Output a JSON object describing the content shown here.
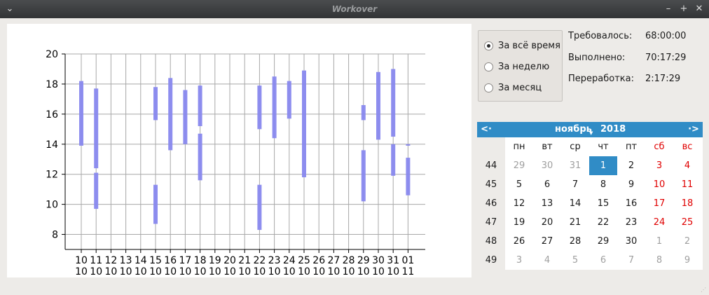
{
  "window": {
    "title": "Workover",
    "menu_glyph": "⌄",
    "minimize_glyph": "–",
    "maximize_glyph": "+",
    "close_glyph": "✕"
  },
  "chart_data": {
    "type": "bar",
    "title": "",
    "xlabel": "",
    "ylabel": "",
    "ylim": [
      7,
      20
    ],
    "yticks": [
      8,
      10,
      12,
      14,
      16,
      18,
      20
    ],
    "categories": [
      {
        "day": "10",
        "month": "10"
      },
      {
        "day": "11",
        "month": "10"
      },
      {
        "day": "12",
        "month": "10"
      },
      {
        "day": "13",
        "month": "10"
      },
      {
        "day": "14",
        "month": "10"
      },
      {
        "day": "15",
        "month": "10"
      },
      {
        "day": "16",
        "month": "10"
      },
      {
        "day": "17",
        "month": "10"
      },
      {
        "day": "18",
        "month": "10"
      },
      {
        "day": "19",
        "month": "10"
      },
      {
        "day": "20",
        "month": "10"
      },
      {
        "day": "21",
        "month": "10"
      },
      {
        "day": "22",
        "month": "10"
      },
      {
        "day": "23",
        "month": "10"
      },
      {
        "day": "24",
        "month": "10"
      },
      {
        "day": "25",
        "month": "10"
      },
      {
        "day": "26",
        "month": "10"
      },
      {
        "day": "27",
        "month": "10"
      },
      {
        "day": "28",
        "month": "10"
      },
      {
        "day": "29",
        "month": "10"
      },
      {
        "day": "30",
        "month": "10"
      },
      {
        "day": "31",
        "month": "10"
      },
      {
        "day": "01",
        "month": "11"
      }
    ],
    "grid": true,
    "bar_color": "#8888ee",
    "intervals": [
      {
        "cat": 0,
        "start": 13.9,
        "end": 18.2
      },
      {
        "cat": 1,
        "start": 12.4,
        "end": 17.7
      },
      {
        "cat": 1,
        "start": 9.7,
        "end": 12.1
      },
      {
        "cat": 5,
        "start": 15.6,
        "end": 17.8
      },
      {
        "cat": 5,
        "start": 8.7,
        "end": 11.3
      },
      {
        "cat": 6,
        "start": 13.6,
        "end": 18.4
      },
      {
        "cat": 7,
        "start": 14.0,
        "end": 17.6
      },
      {
        "cat": 8,
        "start": 15.2,
        "end": 17.9
      },
      {
        "cat": 8,
        "start": 11.6,
        "end": 14.7
      },
      {
        "cat": 12,
        "start": 15.0,
        "end": 17.9
      },
      {
        "cat": 12,
        "start": 8.3,
        "end": 11.3
      },
      {
        "cat": 13,
        "start": 14.4,
        "end": 18.5
      },
      {
        "cat": 14,
        "start": 15.7,
        "end": 18.2
      },
      {
        "cat": 15,
        "start": 11.8,
        "end": 18.9
      },
      {
        "cat": 19,
        "start": 15.6,
        "end": 16.6
      },
      {
        "cat": 19,
        "start": 10.2,
        "end": 13.6
      },
      {
        "cat": 20,
        "start": 14.3,
        "end": 18.8
      },
      {
        "cat": 21,
        "start": 14.5,
        "end": 19.0
      },
      {
        "cat": 21,
        "start": 11.9,
        "end": 14.0
      },
      {
        "cat": 22,
        "start": 13.9,
        "end": 14.0
      },
      {
        "cat": 22,
        "start": 10.6,
        "end": 13.1
      }
    ]
  },
  "period": {
    "options": [
      {
        "label": "За всё время",
        "checked": true
      },
      {
        "label": "За неделю",
        "checked": false
      },
      {
        "label": "За месяц",
        "checked": false
      }
    ]
  },
  "stats": {
    "required_label": "Требовалось:",
    "required_value": "68:00:00",
    "done_label": "Выполнено:",
    "done_value": "70:17:29",
    "overtime_label": "Переработка:",
    "overtime_value": "2:17:29"
  },
  "calendar": {
    "month": "ноябрь",
    "year": "2018",
    "weekday_headers": [
      "пн",
      "вт",
      "ср",
      "чт",
      "пт",
      "сб",
      "вс"
    ],
    "selected_day": "1",
    "weeks": [
      {
        "num": "44",
        "days": [
          {
            "d": "29",
            "other": true
          },
          {
            "d": "30",
            "other": true
          },
          {
            "d": "31",
            "other": true
          },
          {
            "d": "1",
            "sel": true
          },
          {
            "d": "2"
          },
          {
            "d": "3"
          },
          {
            "d": "4"
          }
        ]
      },
      {
        "num": "45",
        "days": [
          {
            "d": "5"
          },
          {
            "d": "6"
          },
          {
            "d": "7"
          },
          {
            "d": "8"
          },
          {
            "d": "9"
          },
          {
            "d": "10"
          },
          {
            "d": "11"
          }
        ]
      },
      {
        "num": "46",
        "days": [
          {
            "d": "12"
          },
          {
            "d": "13"
          },
          {
            "d": "14"
          },
          {
            "d": "15"
          },
          {
            "d": "16"
          },
          {
            "d": "17"
          },
          {
            "d": "18"
          }
        ]
      },
      {
        "num": "47",
        "days": [
          {
            "d": "19"
          },
          {
            "d": "20"
          },
          {
            "d": "21"
          },
          {
            "d": "22"
          },
          {
            "d": "23"
          },
          {
            "d": "24"
          },
          {
            "d": "25"
          }
        ]
      },
      {
        "num": "48",
        "days": [
          {
            "d": "26"
          },
          {
            "d": "27"
          },
          {
            "d": "28"
          },
          {
            "d": "29"
          },
          {
            "d": "30"
          },
          {
            "d": "1",
            "other": true
          },
          {
            "d": "2",
            "other": true
          }
        ]
      },
      {
        "num": "49",
        "days": [
          {
            "d": "3",
            "other": true
          },
          {
            "d": "4",
            "other": true
          },
          {
            "d": "5",
            "other": true
          },
          {
            "d": "6",
            "other": true
          },
          {
            "d": "7",
            "other": true
          },
          {
            "d": "8",
            "other": true
          },
          {
            "d": "9",
            "other": true
          }
        ]
      }
    ]
  }
}
